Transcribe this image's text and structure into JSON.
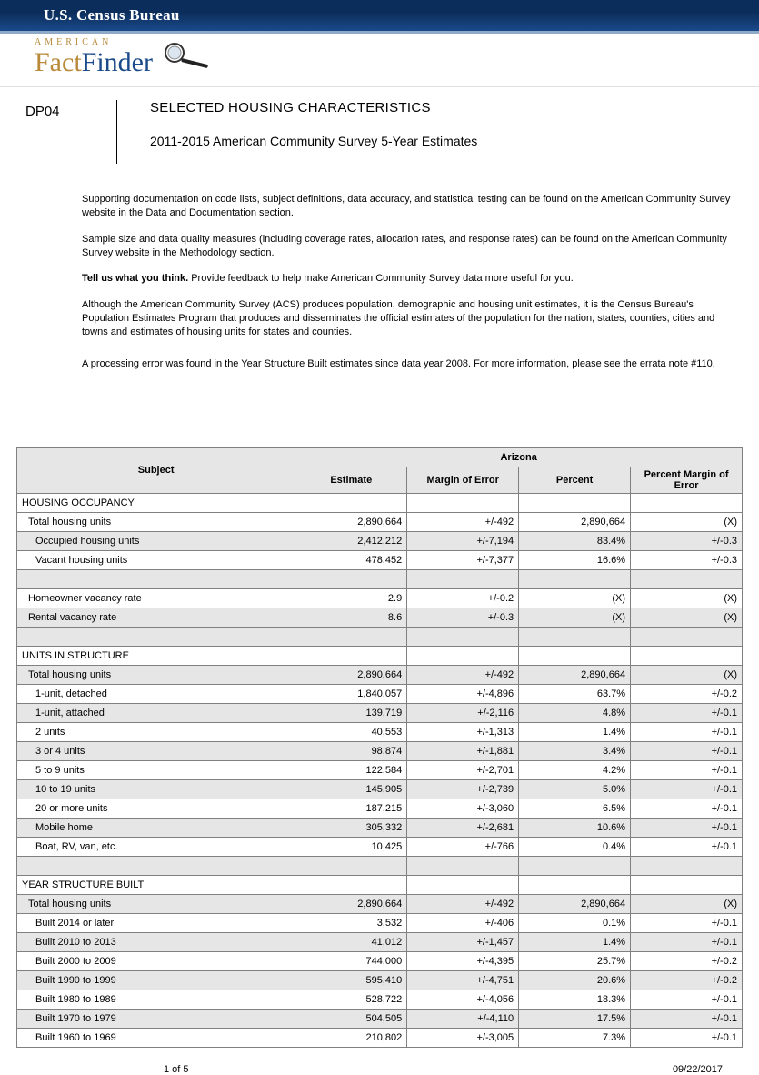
{
  "topbar": {
    "title": "U.S. Census Bureau"
  },
  "logo": {
    "american": "AMERICAN",
    "fact": "Fact",
    "finder": "Finder"
  },
  "meta": {
    "code": "DP04",
    "title": "SELECTED HOUSING CHARACTERISTICS",
    "subtitle": "2011-2015 American Community Survey 5-Year Estimates"
  },
  "notes": {
    "p1": "Supporting documentation on code lists, subject definitions, data accuracy, and statistical testing can be found on the American Community Survey website in the Data and Documentation section.",
    "p2": "Sample size and data quality measures (including coverage rates, allocation rates, and response rates) can be found on the American Community Survey website in the Methodology section.",
    "p3_bold": "Tell us what you think.",
    "p3_rest": " Provide feedback to help make American Community Survey data more useful for you.",
    "p4": "Although the American Community Survey (ACS) produces population, demographic and housing unit estimates, it is the Census Bureau's Population Estimates Program that produces and disseminates the official estimates of the population for the nation, states, counties, cities and towns and estimates of housing units for states and counties.",
    "p5": "A processing error was found in the Year Structure Built estimates since data year 2008. For more information, please see the errata note #110."
  },
  "table": {
    "headers": {
      "subject": "Subject",
      "region": "Arizona",
      "cols": [
        "Estimate",
        "Margin of Error",
        "Percent",
        "Percent Margin of Error"
      ]
    },
    "rows": [
      {
        "type": "section",
        "label": "HOUSING OCCUPANCY"
      },
      {
        "type": "data",
        "shade": false,
        "indent": 1,
        "label": "Total housing units",
        "cells": [
          "2,890,664",
          "+/-492",
          "2,890,664",
          "(X)"
        ]
      },
      {
        "type": "data",
        "shade": true,
        "indent": 2,
        "label": "Occupied housing units",
        "cells": [
          "2,412,212",
          "+/-7,194",
          "83.4%",
          "+/-0.3"
        ]
      },
      {
        "type": "data",
        "shade": false,
        "indent": 2,
        "label": "Vacant housing units",
        "cells": [
          "478,452",
          "+/-7,377",
          "16.6%",
          "+/-0.3"
        ]
      },
      {
        "type": "blank"
      },
      {
        "type": "data",
        "shade": false,
        "indent": 1,
        "label": "Homeowner vacancy rate",
        "cells": [
          "2.9",
          "+/-0.2",
          "(X)",
          "(X)"
        ]
      },
      {
        "type": "data",
        "shade": true,
        "indent": 1,
        "label": "Rental vacancy rate",
        "cells": [
          "8.6",
          "+/-0.3",
          "(X)",
          "(X)"
        ]
      },
      {
        "type": "blank"
      },
      {
        "type": "section",
        "label": "UNITS IN STRUCTURE"
      },
      {
        "type": "data",
        "shade": true,
        "indent": 1,
        "label": "Total housing units",
        "cells": [
          "2,890,664",
          "+/-492",
          "2,890,664",
          "(X)"
        ]
      },
      {
        "type": "data",
        "shade": false,
        "indent": 2,
        "label": "1-unit, detached",
        "cells": [
          "1,840,057",
          "+/-4,896",
          "63.7%",
          "+/-0.2"
        ]
      },
      {
        "type": "data",
        "shade": true,
        "indent": 2,
        "label": "1-unit, attached",
        "cells": [
          "139,719",
          "+/-2,116",
          "4.8%",
          "+/-0.1"
        ]
      },
      {
        "type": "data",
        "shade": false,
        "indent": 2,
        "label": "2 units",
        "cells": [
          "40,553",
          "+/-1,313",
          "1.4%",
          "+/-0.1"
        ]
      },
      {
        "type": "data",
        "shade": true,
        "indent": 2,
        "label": "3 or 4 units",
        "cells": [
          "98,874",
          "+/-1,881",
          "3.4%",
          "+/-0.1"
        ]
      },
      {
        "type": "data",
        "shade": false,
        "indent": 2,
        "label": "5 to 9 units",
        "cells": [
          "122,584",
          "+/-2,701",
          "4.2%",
          "+/-0.1"
        ]
      },
      {
        "type": "data",
        "shade": true,
        "indent": 2,
        "label": "10 to 19 units",
        "cells": [
          "145,905",
          "+/-2,739",
          "5.0%",
          "+/-0.1"
        ]
      },
      {
        "type": "data",
        "shade": false,
        "indent": 2,
        "label": "20 or more units",
        "cells": [
          "187,215",
          "+/-3,060",
          "6.5%",
          "+/-0.1"
        ]
      },
      {
        "type": "data",
        "shade": true,
        "indent": 2,
        "label": "Mobile home",
        "cells": [
          "305,332",
          "+/-2,681",
          "10.6%",
          "+/-0.1"
        ]
      },
      {
        "type": "data",
        "shade": false,
        "indent": 2,
        "label": "Boat, RV, van, etc.",
        "cells": [
          "10,425",
          "+/-766",
          "0.4%",
          "+/-0.1"
        ]
      },
      {
        "type": "blank"
      },
      {
        "type": "section",
        "label": "YEAR STRUCTURE BUILT"
      },
      {
        "type": "data",
        "shade": true,
        "indent": 1,
        "label": "Total housing units",
        "cells": [
          "2,890,664",
          "+/-492",
          "2,890,664",
          "(X)"
        ]
      },
      {
        "type": "data",
        "shade": false,
        "indent": 2,
        "label": "Built 2014 or later",
        "cells": [
          "3,532",
          "+/-406",
          "0.1%",
          "+/-0.1"
        ]
      },
      {
        "type": "data",
        "shade": true,
        "indent": 2,
        "label": "Built 2010 to 2013",
        "cells": [
          "41,012",
          "+/-1,457",
          "1.4%",
          "+/-0.1"
        ]
      },
      {
        "type": "data",
        "shade": false,
        "indent": 2,
        "label": "Built 2000 to 2009",
        "cells": [
          "744,000",
          "+/-4,395",
          "25.7%",
          "+/-0.2"
        ]
      },
      {
        "type": "data",
        "shade": true,
        "indent": 2,
        "label": "Built 1990 to 1999",
        "cells": [
          "595,410",
          "+/-4,751",
          "20.6%",
          "+/-0.2"
        ]
      },
      {
        "type": "data",
        "shade": false,
        "indent": 2,
        "label": "Built 1980 to 1989",
        "cells": [
          "528,722",
          "+/-4,056",
          "18.3%",
          "+/-0.1"
        ]
      },
      {
        "type": "data",
        "shade": true,
        "indent": 2,
        "label": "Built 1970 to 1979",
        "cells": [
          "504,505",
          "+/-4,110",
          "17.5%",
          "+/-0.1"
        ]
      },
      {
        "type": "data",
        "shade": false,
        "indent": 2,
        "label": "Built 1960 to 1969",
        "cells": [
          "210,802",
          "+/-3,005",
          "7.3%",
          "+/-0.1"
        ]
      }
    ],
    "col_widths": [
      "304px",
      "122px",
      "122px",
      "122px",
      "122px"
    ]
  },
  "footer": {
    "page": "1  of 5",
    "date": "09/22/2017"
  }
}
